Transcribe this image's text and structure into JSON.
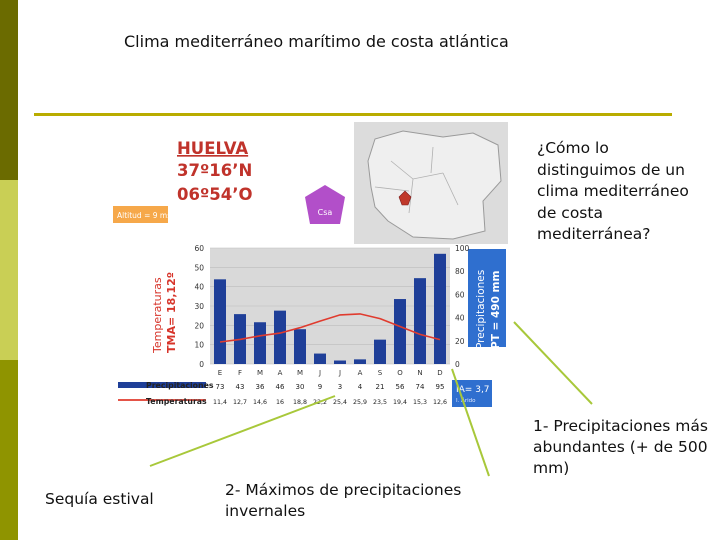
{
  "slide": {
    "title": "Clima mediterráneo marítimo de costa atlántica",
    "question": "¿Cómo lo distinguimos de un clima mediterráneo de costa mediterránea?",
    "notes": [
      "1- Precipitaciones más abundantes (+ de 500 mm)",
      "2- Máximos de precipitaciones invernales",
      "Sequía estival"
    ],
    "colors": {
      "accent_line": "#b9ac00",
      "arrow": "#a8c83a",
      "sidebar_dark": "#6b6b00",
      "sidebar_light": "#c9cf55"
    }
  },
  "station": {
    "name": "HUELVA",
    "lat": "37º16’N",
    "lon": "06º54’O",
    "altitude": "Altitud = 9 ms",
    "koppen": "Csa",
    "temp_axis_label": "Temperaturas",
    "tma": "TMA= 18,12º",
    "prec_axis_label": "Precipitaciones",
    "pt": "PT = 490 mm",
    "ia": "IA= 3,7",
    "ia_sub": "I. Árido",
    "legend_prec": "Precipitaciones",
    "legend_temp": "Temperaturas"
  },
  "chart_data": {
    "type": "bar",
    "categories": [
      "E",
      "F",
      "M",
      "A",
      "M",
      "J",
      "J",
      "A",
      "S",
      "O",
      "N",
      "D"
    ],
    "series": [
      {
        "name": "Precipitaciones",
        "type": "bar",
        "axis": "right",
        "unit": "mm",
        "values": [
          73,
          43,
          36,
          46,
          30,
          9,
          3,
          4,
          21,
          56,
          74,
          95
        ]
      },
      {
        "name": "Temperaturas",
        "type": "line",
        "axis": "left",
        "unit": "ºC",
        "values": [
          11.4,
          12.7,
          14.6,
          16,
          18.8,
          22.2,
          25.4,
          25.9,
          23.5,
          19.4,
          15.3,
          12.6
        ]
      }
    ],
    "table_values": {
      "prec": [
        "73",
        "43",
        "36",
        "46",
        "30",
        "9",
        "3",
        "4",
        "21",
        "56",
        "74",
        "95"
      ],
      "temp": [
        "11,4",
        "12,7",
        "14,6",
        "16",
        "18,8",
        "22,2",
        "25,4",
        "25,9",
        "23,5",
        "19,4",
        "15,3",
        "12,6"
      ]
    },
    "y_left": {
      "ticks": [
        "0",
        "10",
        "20",
        "30",
        "40",
        "50",
        "60"
      ],
      "lim": [
        0,
        60
      ]
    },
    "y_right": {
      "ticks": [
        "0",
        "20",
        "40",
        "60",
        "80",
        "100"
      ],
      "lim": [
        0,
        100
      ]
    },
    "grid": true
  }
}
